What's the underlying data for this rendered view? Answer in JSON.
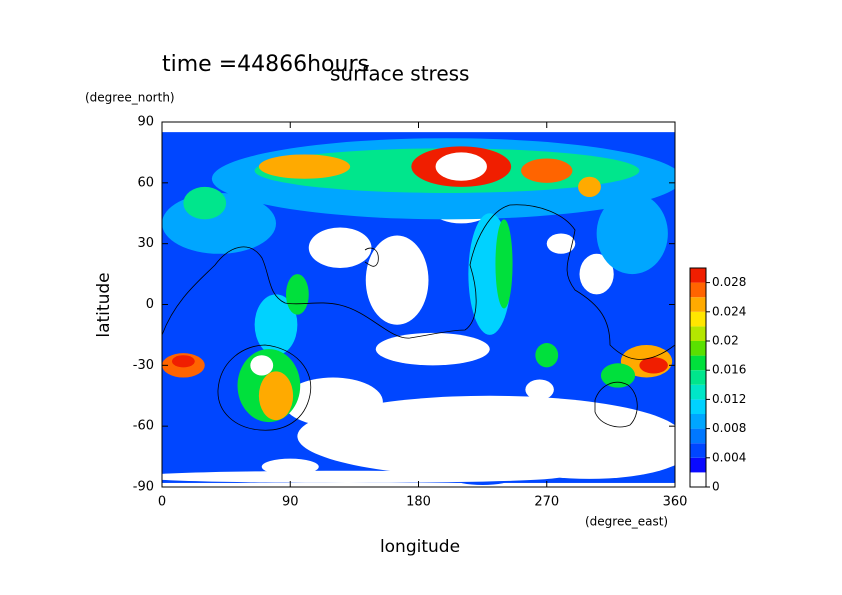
{
  "chart_data": {
    "type": "contour",
    "title": "surface stress",
    "subtitle": "time =44866hours",
    "x_label": "longitude",
    "x_units": "(degree_east)",
    "y_label": "latitude",
    "y_units": "(degree_north)",
    "xlim": [
      0,
      360
    ],
    "xticks": [
      0,
      90,
      180,
      270,
      360
    ],
    "ylim": [
      -90,
      90
    ],
    "yticks": [
      90,
      60,
      30,
      0,
      -30,
      -60,
      -90
    ],
    "levels": [
      0,
      0.002,
      0.004,
      0.006,
      0.008,
      0.01,
      0.012,
      0.014,
      0.016,
      0.018,
      0.02,
      0.022,
      0.024,
      0.026,
      0.028
    ],
    "colors": [
      "#ffffff",
      "#0a0aff",
      "#0046ff",
      "#0078ff",
      "#00a6ff",
      "#00d2ff",
      "#00e6c8",
      "#00e68c",
      "#00e03c",
      "#5ae000",
      "#b4e600",
      "#ffe600",
      "#ffaa00",
      "#ff6400",
      "#f01e00"
    ],
    "colorbar_lim": [
      0,
      0.03
    ],
    "colorbar_ticks": [
      0,
      0.004,
      0.008,
      0.012,
      0.016,
      0.02,
      0.024,
      0.028
    ]
  }
}
